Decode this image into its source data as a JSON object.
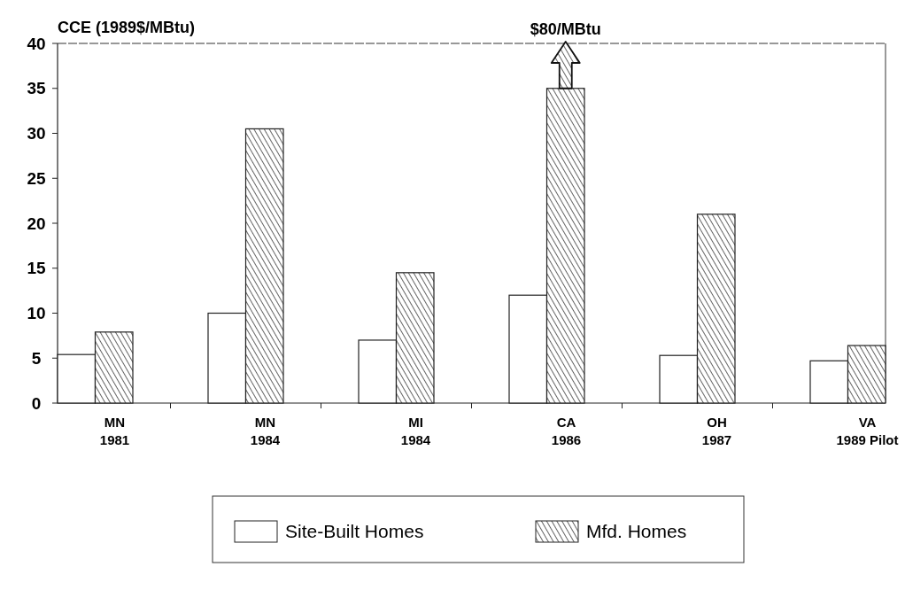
{
  "chart_data": {
    "type": "bar",
    "ylabel": "CCE (1989$/MBtu)",
    "categories": [
      "MN\n1981",
      "MN\n1984",
      "MI\n1984",
      "CA\n1986",
      "OH\n1987",
      "VA\n1989 Pilot"
    ],
    "series": [
      {
        "name": "Site-Built Homes",
        "color": "#ffffff",
        "values": [
          5.4,
          10,
          7,
          12,
          5.3,
          4.7
        ]
      },
      {
        "name": "Mfd. Homes",
        "color": "#222222",
        "values": [
          7.9,
          30.5,
          14.5,
          35,
          21,
          6.4
        ]
      }
    ],
    "ylim": [
      0,
      40
    ],
    "yticks": [
      0,
      5,
      10,
      15,
      20,
      25,
      30,
      35,
      40
    ],
    "annotations": [
      "$80/MBtu"
    ],
    "grid": false,
    "legend": "bottom"
  }
}
